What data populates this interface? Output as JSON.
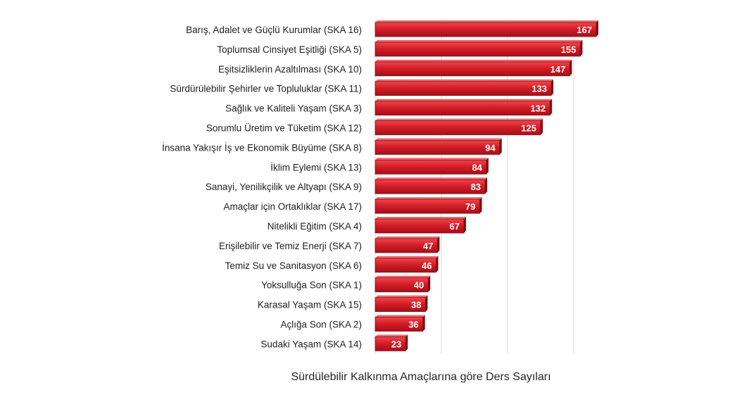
{
  "chart_data": {
    "type": "bar",
    "orientation": "horizontal",
    "title": "Sürdülebilir Kalkınma Amaçlarına göre Ders Sayıları",
    "xlabel": "",
    "ylabel": "",
    "xlim": [
      0,
      200
    ],
    "grid": true,
    "legend": "none",
    "bar_color": "#d0202a",
    "categories": [
      "Barış, Adalet ve Güçlü Kurumlar (SKA 16)",
      "Toplumsal Cinsiyet Eşitliği (SKA 5)",
      "Eşitsizliklerin Azaltılması (SKA 10)",
      "Sürdürülebilir Şehirler ve Topluluklar (SKA 11)",
      "Sağlık ve Kaliteli Yaşam (SKA 3)",
      "Sorumlu Üretim ve Tüketim (SKA 12)",
      "İnsana Yakışır İş ve Ekonomik Büyüme (SKA 8)",
      "İklim Eylemi (SKA 13)",
      "Sanayi, Yenilikçilik ve Altyapı (SKA 9)",
      "Amaçlar için Ortaklıklar (SKA 17)",
      "Nitelikli Eğitim (SKA 4)",
      "Erişilebilir ve Temiz Enerji (SKA 7)",
      "Temiz Su ve Sanitasyon (SKA 6)",
      "Yoksulluğa Son (SKA 1)",
      "Karasal Yaşam (SKA 15)",
      "Açlığa Son (SKA 2)",
      "Sudaki Yaşam (SKA 14)"
    ],
    "values": [
      167,
      155,
      147,
      133,
      132,
      125,
      94,
      84,
      83,
      79,
      67,
      47,
      46,
      40,
      38,
      36,
      23
    ]
  }
}
